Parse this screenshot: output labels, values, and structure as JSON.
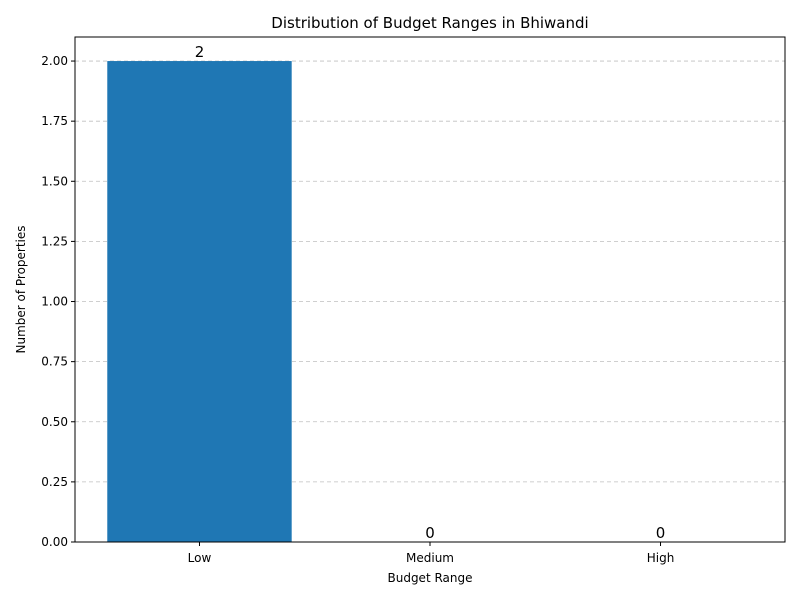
{
  "chart_data": {
    "type": "bar",
    "title": "Distribution of Budget Ranges in Bhiwandi",
    "xlabel": "Budget Range",
    "ylabel": "Number of Properties",
    "categories": [
      "Low",
      "Medium",
      "High"
    ],
    "values": [
      2,
      0,
      0
    ],
    "data_labels": [
      "2",
      "0",
      "0"
    ],
    "ylim": [
      0,
      2.1
    ],
    "yticks": [
      0.0,
      0.25,
      0.5,
      0.75,
      1.0,
      1.25,
      1.5,
      1.75,
      2.0
    ],
    "ytick_labels": [
      "0.00",
      "0.25",
      "0.50",
      "0.75",
      "1.00",
      "1.25",
      "1.50",
      "1.75",
      "2.00"
    ],
    "grid": "y-dashed",
    "bar_color": "#1f77b4",
    "grid_color": "#b0b0b0"
  }
}
